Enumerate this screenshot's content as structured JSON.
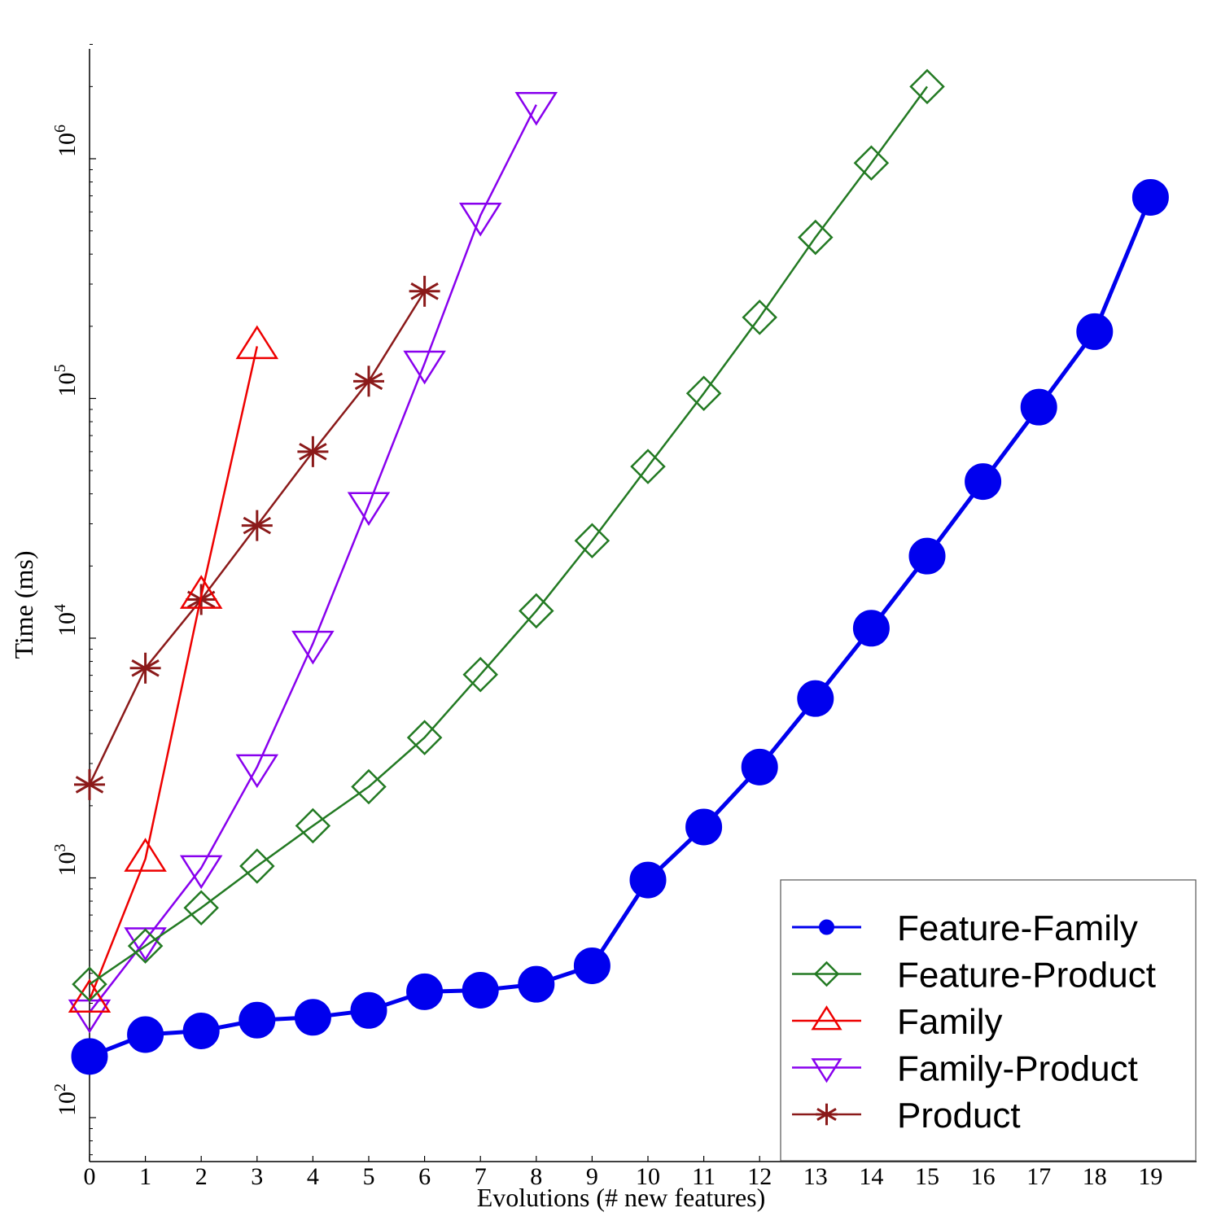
{
  "chart_data": {
    "type": "line",
    "xlabel": "Evolutions (# new features)",
    "ylabel": "Time (ms)",
    "yscale": "log",
    "ylim": [
      70,
      3000000
    ],
    "xlim": [
      0,
      19.8
    ],
    "x_ticks": [
      0,
      1,
      2,
      3,
      4,
      5,
      6,
      7,
      8,
      9,
      10,
      11,
      12,
      13,
      14,
      15,
      16,
      17,
      18,
      19
    ],
    "y_ticks": [
      {
        "value": 100,
        "base": "10",
        "exp": "2"
      },
      {
        "value": 1000,
        "base": "10",
        "exp": "3"
      },
      {
        "value": 10000,
        "base": "10",
        "exp": "4"
      },
      {
        "value": 100000,
        "base": "10",
        "exp": "5"
      },
      {
        "value": 1000000,
        "base": "10",
        "exp": "6"
      }
    ],
    "grid": false,
    "legend_position": "bottom-right",
    "series": [
      {
        "name": "Feature-Family",
        "color": "#0000ee",
        "marker": "filled-circle",
        "x": [
          0,
          1,
          2,
          3,
          4,
          5,
          6,
          7,
          8,
          9,
          10,
          11,
          12,
          13,
          14,
          15,
          16,
          17,
          18,
          19
        ],
        "values": [
          180,
          222,
          230,
          255,
          262,
          280,
          335,
          340,
          360,
          430,
          980,
          1630,
          2900,
          5600,
          11000,
          22000,
          45000,
          92000,
          190000,
          690000
        ]
      },
      {
        "name": "Feature-Product",
        "color": "#237a23",
        "marker": "open-diamond",
        "x": [
          0,
          1,
          2,
          3,
          4,
          5,
          6,
          7,
          8,
          9,
          10,
          11,
          12,
          13,
          14,
          15
        ],
        "values": [
          360,
          520,
          750,
          1120,
          1650,
          2400,
          3850,
          7050,
          13000,
          25500,
          52000,
          105000,
          218000,
          470000,
          960000,
          2000000
        ]
      },
      {
        "name": "Family",
        "color": "#ee0000",
        "marker": "open-triangle-up",
        "x": [
          0,
          1,
          2,
          3
        ],
        "values": [
          310,
          1200,
          15000,
          165000
        ]
      },
      {
        "name": "Family-Product",
        "color": "#8800ee",
        "marker": "open-triangle-down",
        "x": [
          0,
          1,
          2,
          3,
          4,
          5,
          6,
          7,
          8
        ],
        "values": [
          275,
          550,
          1100,
          2900,
          9500,
          36000,
          140000,
          580000,
          1680000
        ]
      },
      {
        "name": "Product",
        "color": "#8b1a1a",
        "marker": "asterisk",
        "x": [
          0,
          1,
          2,
          3,
          4,
          5,
          6
        ],
        "values": [
          2450,
          7500,
          14500,
          29500,
          60000,
          118000,
          280000
        ]
      }
    ]
  }
}
